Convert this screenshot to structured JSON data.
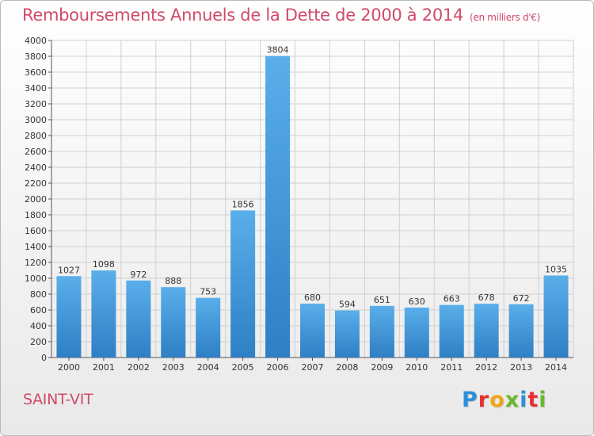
{
  "header": {
    "title": "Remboursements Annuels de la Dette de 2000 à 2014",
    "unit": "(en milliers d'€)"
  },
  "footer": {
    "commune": "SAINT-VIT",
    "logo_text": "Proxiti"
  },
  "colors": {
    "title": "#d04a6a",
    "bar_top": "#5aaeea",
    "bar_bottom": "#2f7fc4",
    "grid": "#d0d0d0",
    "logo_letters": [
      "#2f8fd8",
      "#e8312f",
      "#f2a516",
      "#6ab82c",
      "#2f8fd8",
      "#e8312f",
      "#6ab82c"
    ]
  },
  "chart_data": {
    "type": "bar",
    "title": "Remboursements Annuels de la Dette de 2000 à 2014",
    "subtitle": "(en milliers d'€)",
    "xlabel": "",
    "ylabel": "",
    "categories": [
      "2000",
      "2001",
      "2002",
      "2003",
      "2004",
      "2005",
      "2006",
      "2007",
      "2008",
      "2009",
      "2010",
      "2011",
      "2012",
      "2013",
      "2014"
    ],
    "values": [
      1027,
      1098,
      972,
      888,
      753,
      1856,
      3804,
      680,
      594,
      651,
      630,
      663,
      678,
      672,
      1035
    ],
    "ylim": [
      0,
      4000
    ],
    "ytick_step": 200,
    "grid": true,
    "legend": "none"
  }
}
